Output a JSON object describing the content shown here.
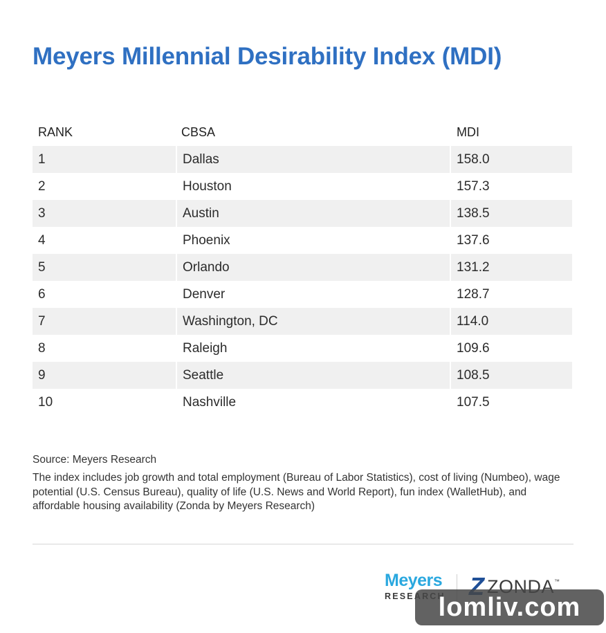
{
  "chart_data": {
    "type": "table",
    "title": "Meyers Millennial Desirability Index (MDI)",
    "columns": [
      "RANK",
      "CBSA",
      "MDI"
    ],
    "rows": [
      {
        "rank": "1",
        "cbsa": "Dallas",
        "mdi": "158.0"
      },
      {
        "rank": "2",
        "cbsa": "Houston",
        "mdi": "157.3"
      },
      {
        "rank": "3",
        "cbsa": "Austin",
        "mdi": "138.5"
      },
      {
        "rank": "4",
        "cbsa": "Phoenix",
        "mdi": "137.6"
      },
      {
        "rank": "5",
        "cbsa": "Orlando",
        "mdi": "131.2"
      },
      {
        "rank": "6",
        "cbsa": "Denver",
        "mdi": "128.7"
      },
      {
        "rank": "7",
        "cbsa": "Washington, DC",
        "mdi": "114.0"
      },
      {
        "rank": "8",
        "cbsa": "Raleigh",
        "mdi": "109.6"
      },
      {
        "rank": "9",
        "cbsa": "Seattle",
        "mdi": "108.5"
      },
      {
        "rank": "10",
        "cbsa": "Nashville",
        "mdi": "107.5"
      }
    ],
    "source": "Source: Meyers Research",
    "note": "The index includes job growth and total employment (Bureau of Labor Statistics), cost of living (Numbeo), wage potential (U.S. Census Bureau), quality of life (U.S. News and World Report), fun index (WalletHub), and affordable housing availability (Zonda by Meyers Research)"
  },
  "logos": {
    "meyers_main": "Meyers",
    "meyers_sub": "RESEARCH",
    "zonda_mark": "Z",
    "zonda_word": "ZONDA",
    "zonda_tm": "™"
  },
  "watermark": "lomliv.com",
  "colors": {
    "title": "#2f70c2",
    "row_shade": "#f0f0f0",
    "meyers": "#2aa8df",
    "zonda": "#1f4f97"
  }
}
